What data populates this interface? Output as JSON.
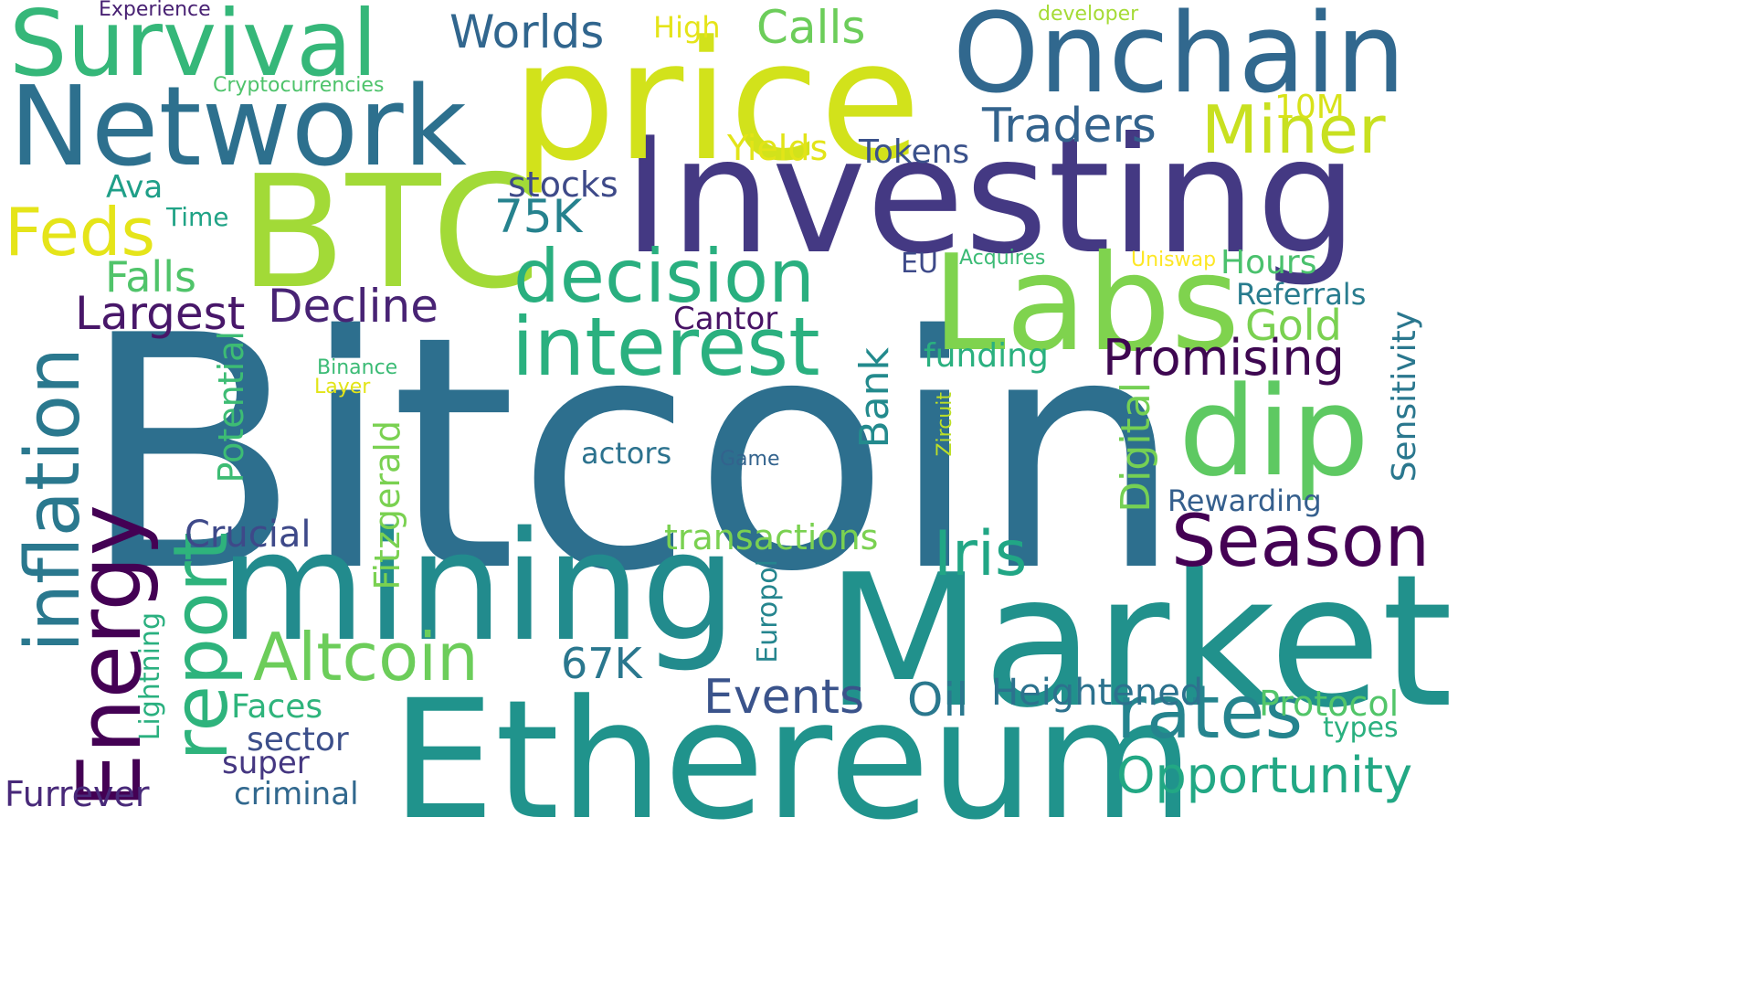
{
  "word_cloud": {
    "background": "#ffffff",
    "words": [
      {
        "text": "Bitcoin",
        "color": "#2d6f8e",
        "orientation": "horizontal"
      },
      {
        "text": "Investing",
        "color": "#443983",
        "orientation": "horizontal"
      },
      {
        "text": "Ethereum",
        "color": "#20938c",
        "orientation": "horizontal"
      },
      {
        "text": "Market",
        "color": "#21918c",
        "orientation": "horizontal"
      },
      {
        "text": "price",
        "color": "#d2e21b",
        "orientation": "horizontal"
      },
      {
        "text": "BTC",
        "color": "#a2da37",
        "orientation": "horizontal"
      },
      {
        "text": "mining",
        "color": "#228b8d",
        "orientation": "horizontal"
      },
      {
        "text": "Network",
        "color": "#2d708e",
        "orientation": "horizontal"
      },
      {
        "text": "Onchain",
        "color": "#31688e",
        "orientation": "horizontal"
      },
      {
        "text": "Labs",
        "color": "#7fd34e",
        "orientation": "horizontal"
      },
      {
        "text": "dip",
        "color": "#5ec962",
        "orientation": "horizontal"
      },
      {
        "text": "Survival",
        "color": "#35b779",
        "orientation": "horizontal"
      },
      {
        "text": "inflation",
        "color": "#2a788e",
        "orientation": "vertical"
      },
      {
        "text": "interest",
        "color": "#2ab07f",
        "orientation": "horizontal"
      },
      {
        "text": "decision",
        "color": "#29af7f",
        "orientation": "horizontal"
      },
      {
        "text": "Season",
        "color": "#440154",
        "orientation": "horizontal"
      },
      {
        "text": "rates",
        "color": "#25848e",
        "orientation": "horizontal"
      },
      {
        "text": "Energy",
        "color": "#440154",
        "orientation": "vertical"
      },
      {
        "text": "report",
        "color": "#2eb37c",
        "orientation": "vertical"
      },
      {
        "text": "Altcoin",
        "color": "#6ccd5a",
        "orientation": "horizontal"
      },
      {
        "text": "Miner",
        "color": "#c8e020",
        "orientation": "horizontal"
      },
      {
        "text": "Iris",
        "color": "#21a685",
        "orientation": "horizontal"
      },
      {
        "text": "Feds",
        "color": "#e5e419",
        "orientation": "horizontal"
      },
      {
        "text": "Promising",
        "color": "#3e0751",
        "orientation": "horizontal"
      },
      {
        "text": "Opportunity",
        "color": "#22a884",
        "orientation": "horizontal"
      },
      {
        "text": "Decline",
        "color": "#482374",
        "orientation": "horizontal"
      },
      {
        "text": "Largest",
        "color": "#481769",
        "orientation": "horizontal"
      },
      {
        "text": "Traders",
        "color": "#33638d",
        "orientation": "horizontal"
      },
      {
        "text": "Worlds",
        "color": "#31668e",
        "orientation": "horizontal"
      },
      {
        "text": "Calls",
        "color": "#6ccd5a",
        "orientation": "horizontal"
      },
      {
        "text": "Digital",
        "color": "#75d054",
        "orientation": "vertical"
      },
      {
        "text": "Events",
        "color": "#3a538b",
        "orientation": "horizontal"
      },
      {
        "text": "Falls",
        "color": "#50c46a",
        "orientation": "horizontal"
      },
      {
        "text": "Gold",
        "color": "#7ad151",
        "orientation": "horizontal"
      },
      {
        "text": "Bank",
        "color": "#238a8d",
        "orientation": "vertical"
      },
      {
        "text": "Oil",
        "color": "#2a788e",
        "orientation": "horizontal"
      },
      {
        "text": "Heightened",
        "color": "#2c728e",
        "orientation": "horizontal"
      },
      {
        "text": "Protocol",
        "color": "#52c569",
        "orientation": "horizontal"
      },
      {
        "text": "Sensitivity",
        "color": "#2a778e",
        "orientation": "vertical"
      },
      {
        "text": "75K",
        "color": "#26828e",
        "orientation": "horizontal"
      },
      {
        "text": "67K",
        "color": "#2a778e",
        "orientation": "horizontal"
      },
      {
        "text": "Crucial",
        "color": "#3e4989",
        "orientation": "horizontal"
      },
      {
        "text": "Fitzgerald",
        "color": "#7ad151",
        "orientation": "vertical"
      },
      {
        "text": "Potential",
        "color": "#3dbc74",
        "orientation": "vertical"
      },
      {
        "text": "transactions",
        "color": "#7ad151",
        "orientation": "horizontal"
      },
      {
        "text": "Yields",
        "color": "#e2e418",
        "orientation": "horizontal"
      },
      {
        "text": "Tokens",
        "color": "#3b528b",
        "orientation": "horizontal"
      },
      {
        "text": "stocks",
        "color": "#3e4a89",
        "orientation": "horizontal"
      },
      {
        "text": "Cantor",
        "color": "#471365",
        "orientation": "horizontal"
      },
      {
        "text": "Hours",
        "color": "#4ac16d",
        "orientation": "horizontal"
      },
      {
        "text": "Referrals",
        "color": "#287c8e",
        "orientation": "horizontal"
      },
      {
        "text": "Rewarding",
        "color": "#355f8d",
        "orientation": "horizontal"
      },
      {
        "text": "funding",
        "color": "#2ab07f",
        "orientation": "horizontal"
      },
      {
        "text": "Faces",
        "color": "#2fb47c",
        "orientation": "horizontal"
      },
      {
        "text": "sector",
        "color": "#3c4f8a",
        "orientation": "horizontal"
      },
      {
        "text": "super",
        "color": "#453781",
        "orientation": "horizontal"
      },
      {
        "text": "Furrever",
        "color": "#482979",
        "orientation": "horizontal"
      },
      {
        "text": "criminal",
        "color": "#31688e",
        "orientation": "horizontal"
      },
      {
        "text": "Europol",
        "color": "#25858e",
        "orientation": "vertical"
      },
      {
        "text": "Lightning",
        "color": "#2ab07f",
        "orientation": "vertical"
      },
      {
        "text": "types",
        "color": "#2ab07f",
        "orientation": "horizontal"
      },
      {
        "text": "actors",
        "color": "#2c728e",
        "orientation": "horizontal"
      },
      {
        "text": "High",
        "color": "#e5e419",
        "orientation": "horizontal"
      },
      {
        "text": "10M",
        "color": "#d8e219",
        "orientation": "horizontal"
      },
      {
        "text": "Ava",
        "color": "#1f9f88",
        "orientation": "horizontal"
      },
      {
        "text": "Time",
        "color": "#20a386",
        "orientation": "horizontal"
      },
      {
        "text": "EU",
        "color": "#3e4a89",
        "orientation": "horizontal"
      },
      {
        "text": "Cryptocurrencies",
        "color": "#4ec36b",
        "orientation": "horizontal"
      },
      {
        "text": "Experience",
        "color": "#482173",
        "orientation": "horizontal"
      },
      {
        "text": "developer",
        "color": "#a5db36",
        "orientation": "horizontal"
      },
      {
        "text": "Acquires",
        "color": "#3bbb75",
        "orientation": "horizontal"
      },
      {
        "text": "Uniswap",
        "color": "#fde725",
        "orientation": "horizontal"
      },
      {
        "text": "Binance",
        "color": "#3bbb75",
        "orientation": "horizontal"
      },
      {
        "text": "Layer",
        "color": "#e2e418",
        "orientation": "horizontal"
      },
      {
        "text": "Game",
        "color": "#33638d",
        "orientation": "horizontal"
      },
      {
        "text": "Zircuit",
        "color": "#bddf26",
        "orientation": "vertical"
      }
    ]
  }
}
